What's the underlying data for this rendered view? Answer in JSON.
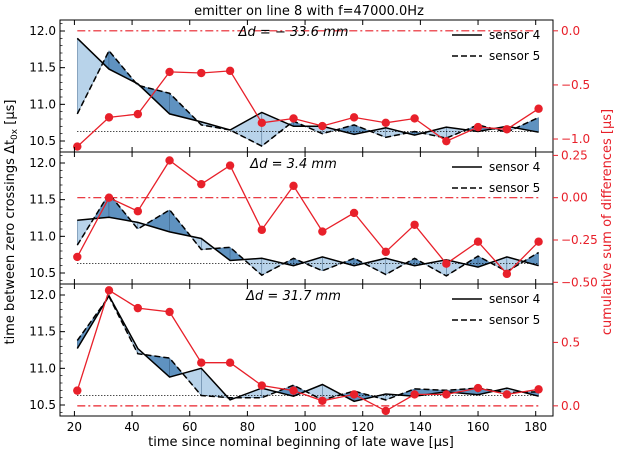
{
  "figure": {
    "title": "emitter on line 8 with f=47000.0Hz",
    "xlabel": "time since nominal beginning of late wave [μs]",
    "ylabel_left": "time between zero crossings  Δt",
    "ylabel_left_sub": "0x",
    "ylabel_left_unit": " [μs]",
    "ylabel_right": "cumulative sum of differences [μs]"
  },
  "chart_data": [
    {
      "type": "line",
      "annotation": "Δd = − 33.6 mm",
      "xlim": [
        15,
        186
      ],
      "ylim": [
        10.35,
        12.15
      ],
      "y2lim": [
        -1.12,
        0.1
      ],
      "xticks": [
        20,
        40,
        60,
        80,
        100,
        120,
        140,
        160,
        180
      ],
      "yticks": [
        10.5,
        11.0,
        11.5,
        12.0
      ],
      "ytick_labels": [
        "10.5",
        "11.0",
        "11.5",
        "12.0"
      ],
      "y2ticks": [
        0.0,
        -0.5,
        -1.0
      ],
      "y2tick_labels": [
        "0.0",
        "−0.5",
        "−1.0"
      ],
      "x": [
        21,
        32,
        42,
        53,
        64,
        74,
        85,
        96,
        106,
        117,
        128,
        138,
        149,
        160,
        170,
        181
      ],
      "series": [
        {
          "name": "sensor 4",
          "style": "solid",
          "values": [
            11.9,
            11.48,
            11.28,
            10.87,
            10.76,
            10.65,
            10.89,
            10.7,
            10.7,
            10.59,
            10.68,
            10.58,
            10.69,
            10.63,
            10.7,
            10.62
          ]
        },
        {
          "name": "sensor 5",
          "style": "dashed",
          "values": [
            10.87,
            11.73,
            11.26,
            11.15,
            10.72,
            10.65,
            10.43,
            10.77,
            10.6,
            10.72,
            10.55,
            10.63,
            10.54,
            10.72,
            10.62,
            10.82
          ]
        },
        {
          "name": "cumulative sum",
          "axis": "right",
          "values": [
            -1.07,
            -0.8,
            -0.77,
            -0.38,
            -0.39,
            -0.37,
            -0.85,
            -0.81,
            -0.88,
            -0.8,
            -0.85,
            -0.81,
            -1.02,
            -0.89,
            -0.91,
            -0.72
          ]
        }
      ],
      "reference_levels": {
        "dotted_left": 10.63,
        "dashdot_right": 0.0
      },
      "legend": "top-right"
    },
    {
      "type": "line",
      "annotation": "Δd = 3.4 mm",
      "xlim": [
        15,
        186
      ],
      "ylim": [
        10.35,
        12.15
      ],
      "y2lim": [
        -0.51,
        0.27
      ],
      "xticks": [
        20,
        40,
        60,
        80,
        100,
        120,
        140,
        160,
        180
      ],
      "yticks": [
        10.5,
        11.0,
        11.5,
        12.0
      ],
      "ytick_labels": [
        "10.5",
        "11.0",
        "11.5",
        "12.0"
      ],
      "y2ticks": [
        0.25,
        0.0,
        -0.25,
        -0.5
      ],
      "y2tick_labels": [
        "0.25",
        "0.00",
        "−0.25",
        "−0.50"
      ],
      "x": [
        21,
        32,
        42,
        53,
        64,
        74,
        85,
        96,
        106,
        117,
        128,
        138,
        149,
        160,
        170,
        181
      ],
      "series": [
        {
          "name": "sensor 4",
          "style": "solid",
          "values": [
            11.22,
            11.26,
            11.19,
            11.06,
            10.97,
            10.67,
            10.7,
            10.6,
            10.72,
            10.6,
            10.7,
            10.6,
            10.68,
            10.58,
            10.72,
            10.6
          ]
        },
        {
          "name": "sensor 5",
          "style": "dashed",
          "values": [
            10.88,
            11.58,
            11.1,
            11.36,
            10.82,
            10.85,
            10.47,
            10.7,
            10.53,
            10.7,
            10.48,
            10.7,
            10.46,
            10.73,
            10.52,
            10.78
          ]
        },
        {
          "name": "cumulative sum",
          "axis": "right",
          "values": [
            -0.35,
            0.0,
            -0.08,
            0.22,
            0.08,
            0.19,
            -0.19,
            0.07,
            -0.2,
            -0.09,
            -0.32,
            -0.16,
            -0.39,
            -0.26,
            -0.45,
            -0.26
          ]
        }
      ],
      "reference_levels": {
        "dotted_left": 10.63,
        "dashdot_right": 0.0
      },
      "legend": "top-right"
    },
    {
      "type": "line",
      "annotation": "Δd = 31.7 mm",
      "xlim": [
        15,
        186
      ],
      "ylim": [
        10.35,
        12.15
      ],
      "y2lim": [
        -0.08,
        0.96
      ],
      "xticks": [
        20,
        40,
        60,
        80,
        100,
        120,
        140,
        160,
        180
      ],
      "yticks": [
        10.5,
        11.0,
        11.5,
        12.0
      ],
      "ytick_labels": [
        "10.5",
        "11.0",
        "11.5",
        "12.0"
      ],
      "y2ticks": [
        0.5,
        0.0
      ],
      "y2tick_labels": [
        "0.5",
        "0.0"
      ],
      "x": [
        21,
        32,
        42,
        53,
        64,
        74,
        85,
        96,
        106,
        117,
        128,
        138,
        149,
        160,
        170,
        181
      ],
      "series": [
        {
          "name": "sensor 4",
          "style": "solid",
          "values": [
            11.27,
            11.99,
            11.27,
            10.88,
            11.0,
            10.57,
            10.73,
            10.62,
            10.78,
            10.55,
            10.65,
            10.62,
            10.68,
            10.64,
            10.73,
            10.62
          ]
        },
        {
          "name": "sensor 5",
          "style": "dashed",
          "values": [
            11.38,
            11.98,
            11.2,
            11.14,
            10.63,
            10.6,
            10.6,
            10.77,
            10.57,
            10.69,
            10.57,
            10.72,
            10.7,
            10.73,
            10.67,
            10.68
          ]
        },
        {
          "name": "cumulative sum",
          "axis": "right",
          "values": [
            0.12,
            0.91,
            0.77,
            0.74,
            0.34,
            0.34,
            0.16,
            0.12,
            0.04,
            0.09,
            -0.04,
            0.09,
            0.09,
            0.14,
            0.09,
            0.13
          ]
        }
      ],
      "reference_levels": {
        "dotted_left": 10.63,
        "dashdot_right": 0.0
      },
      "legend": "top-right"
    }
  ]
}
